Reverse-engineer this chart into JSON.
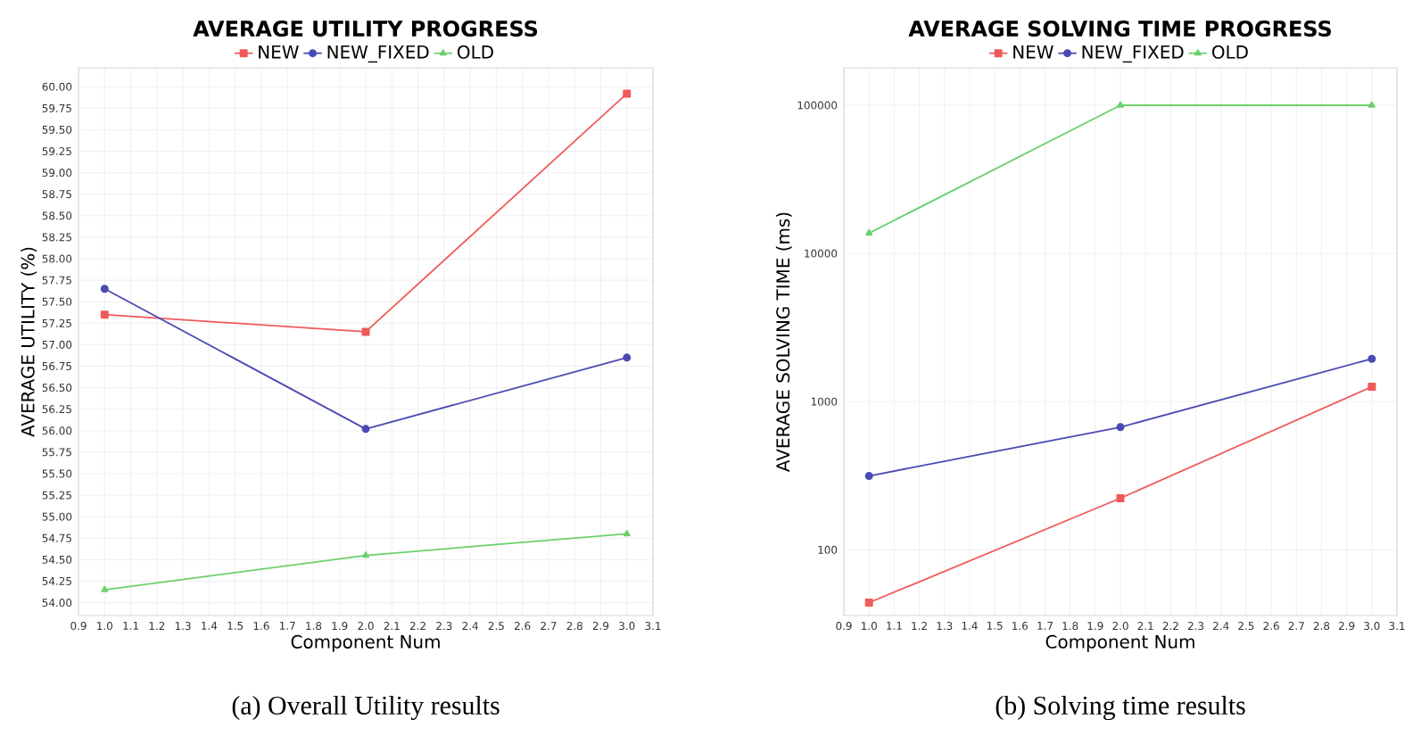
{
  "chart_data": [
    {
      "type": "line",
      "title": "AVERAGE UTILITY PROGRESS",
      "xlabel": "Component Num",
      "ylabel": "AVERAGE UTILITY (%)",
      "annotations": [
        "(a) Overall Utility results"
      ],
      "x": [
        1,
        2,
        3
      ],
      "series": [
        {
          "name": "NEW",
          "color": "#f05a5a",
          "marker": "square",
          "values": [
            57.35,
            57.15,
            59.92
          ]
        },
        {
          "name": "NEW_FIXED",
          "color": "#4a4ab4",
          "marker": "circle",
          "values": [
            57.65,
            56.02,
            56.85
          ]
        },
        {
          "name": "OLD",
          "color": "#6cd06c",
          "marker": "triangle",
          "values": [
            54.15,
            54.55,
            54.8
          ]
        }
      ],
      "xlim": [
        0.9,
        3.1
      ],
      "ylim": [
        53.85,
        60.22
      ],
      "xticks": [
        {
          "value": 0.9,
          "label": "0.9"
        },
        {
          "value": 1.0,
          "label": "1.0"
        },
        {
          "value": 1.1,
          "label": "1.1"
        },
        {
          "value": 1.2,
          "label": "1.2"
        },
        {
          "value": 1.3,
          "label": "1.3"
        },
        {
          "value": 1.4,
          "label": "1.4"
        },
        {
          "value": 1.5,
          "label": "1.5"
        },
        {
          "value": 1.6,
          "label": "1.6"
        },
        {
          "value": 1.7,
          "label": "1.7"
        },
        {
          "value": 1.8,
          "label": "1.8"
        },
        {
          "value": 1.9,
          "label": "1.9"
        },
        {
          "value": 2.0,
          "label": "2.0"
        },
        {
          "value": 2.1,
          "label": "2.1"
        },
        {
          "value": 2.2,
          "label": "2.2"
        },
        {
          "value": 2.3,
          "label": "2.3"
        },
        {
          "value": 2.4,
          "label": "2.4"
        },
        {
          "value": 2.5,
          "label": "2.5"
        },
        {
          "value": 2.6,
          "label": "2.6"
        },
        {
          "value": 2.7,
          "label": "2.7"
        },
        {
          "value": 2.8,
          "label": "2.8"
        },
        {
          "value": 2.9,
          "label": "2.9"
        },
        {
          "value": 3.0,
          "label": "3.0"
        },
        {
          "value": 3.1,
          "label": "3.1"
        }
      ],
      "yticks": [
        {
          "value": 54.0,
          "label": "54.00"
        },
        {
          "value": 54.25,
          "label": "54.25"
        },
        {
          "value": 54.5,
          "label": "54.50"
        },
        {
          "value": 54.75,
          "label": "54.75"
        },
        {
          "value": 55.0,
          "label": "55.00"
        },
        {
          "value": 55.25,
          "label": "55.25"
        },
        {
          "value": 55.5,
          "label": "55.50"
        },
        {
          "value": 55.75,
          "label": "55.75"
        },
        {
          "value": 56.0,
          "label": "56.00"
        },
        {
          "value": 56.25,
          "label": "56.25"
        },
        {
          "value": 56.5,
          "label": "56.50"
        },
        {
          "value": 56.75,
          "label": "56.75"
        },
        {
          "value": 57.0,
          "label": "57.00"
        },
        {
          "value": 57.25,
          "label": "57.25"
        },
        {
          "value": 57.5,
          "label": "57.50"
        },
        {
          "value": 57.75,
          "label": "57.75"
        },
        {
          "value": 58.0,
          "label": "58.00"
        },
        {
          "value": 58.25,
          "label": "58.25"
        },
        {
          "value": 58.5,
          "label": "58.50"
        },
        {
          "value": 58.75,
          "label": "58.75"
        },
        {
          "value": 59.0,
          "label": "59.00"
        },
        {
          "value": 59.25,
          "label": "59.25"
        },
        {
          "value": 59.5,
          "label": "59.50"
        },
        {
          "value": 59.75,
          "label": "59.75"
        },
        {
          "value": 60.0,
          "label": "60.00"
        }
      ],
      "grid": true,
      "legend": "top",
      "line_style": "solid"
    },
    {
      "type": "line",
      "title": "AVERAGE SOLVING TIME PROGRESS",
      "xlabel": "Component Num",
      "ylabel": "AVERAGE SOLVING TIME (ms)",
      "annotations": [
        "(b) Solving time results"
      ],
      "x": [
        1,
        2,
        3
      ],
      "series": [
        {
          "name": "NEW",
          "color": "#f05a5a",
          "marker": "square",
          "values": [
            44,
            223,
            1260
          ]
        },
        {
          "name": "NEW_FIXED",
          "color": "#4a4ab4",
          "marker": "circle",
          "values": [
            315,
            673,
            1945
          ]
        },
        {
          "name": "OLD",
          "color": "#6cd06c",
          "marker": "triangle",
          "values": [
            13700,
            100000,
            100000
          ]
        }
      ],
      "xlim": [
        0.9,
        3.1
      ],
      "ylim": [
        36,
        179000
      ],
      "log": "y",
      "xticks": [
        {
          "value": 0.9,
          "label": "0.9"
        },
        {
          "value": 1.0,
          "label": "1.0"
        },
        {
          "value": 1.1,
          "label": "1.1"
        },
        {
          "value": 1.2,
          "label": "1.2"
        },
        {
          "value": 1.3,
          "label": "1.3"
        },
        {
          "value": 1.4,
          "label": "1.4"
        },
        {
          "value": 1.5,
          "label": "1.5"
        },
        {
          "value": 1.6,
          "label": "1.6"
        },
        {
          "value": 1.7,
          "label": "1.7"
        },
        {
          "value": 1.8,
          "label": "1.8"
        },
        {
          "value": 1.9,
          "label": "1.9"
        },
        {
          "value": 2.0,
          "label": "2.0"
        },
        {
          "value": 2.1,
          "label": "2.1"
        },
        {
          "value": 2.2,
          "label": "2.2"
        },
        {
          "value": 2.3,
          "label": "2.3"
        },
        {
          "value": 2.4,
          "label": "2.4"
        },
        {
          "value": 2.5,
          "label": "2.5"
        },
        {
          "value": 2.6,
          "label": "2.6"
        },
        {
          "value": 2.7,
          "label": "2.7"
        },
        {
          "value": 2.8,
          "label": "2.8"
        },
        {
          "value": 2.9,
          "label": "2.9"
        },
        {
          "value": 3.0,
          "label": "3.0"
        },
        {
          "value": 3.1,
          "label": "3.1"
        }
      ],
      "yticks": [
        100,
        1000,
        10000,
        100000
      ],
      "grid": true,
      "legend": "top",
      "line_style": "solid"
    }
  ]
}
